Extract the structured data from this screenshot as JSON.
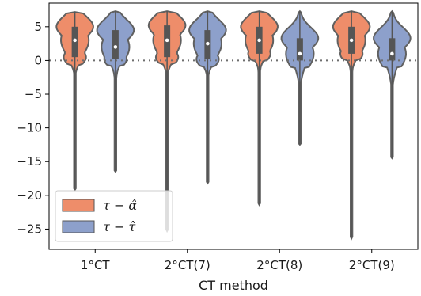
{
  "chart_data": {
    "type": "violin",
    "xlabel": "CT method",
    "ylabel": "",
    "ylim": [
      -28,
      8.5
    ],
    "yticks": [
      5,
      0,
      -5,
      -10,
      -15,
      -20,
      -25
    ],
    "ytick_labels": [
      "5",
      "0",
      "−5",
      "−10",
      "−15",
      "−20",
      "−25"
    ],
    "categories": [
      "1°CT",
      "2°CT(7)",
      "2°CT(8)",
      "2°CT(9)"
    ],
    "reference_line": 0,
    "legend_position": "lower-left",
    "series": [
      {
        "name": "τ − α̂",
        "color": "#ee8d6a",
        "stats": [
          {
            "min": -19.2,
            "q1": 0.5,
            "median": 3.0,
            "q3": 5.0,
            "max": 7.2
          },
          {
            "min": -25.3,
            "q1": 0.5,
            "median": 3.0,
            "q3": 5.2,
            "max": 7.3
          },
          {
            "min": -21.4,
            "q1": 1.0,
            "median": 3.0,
            "q3": 5.0,
            "max": 7.3
          },
          {
            "min": -26.4,
            "q1": 1.0,
            "median": 3.0,
            "q3": 5.0,
            "max": 7.3
          }
        ]
      },
      {
        "name": "τ − τ̂",
        "color": "#8da0cb",
        "stats": [
          {
            "min": -16.5,
            "q1": 0.2,
            "median": 2.0,
            "q3": 4.5,
            "max": 7.3
          },
          {
            "min": -18.2,
            "q1": 0.2,
            "median": 2.5,
            "q3": 4.5,
            "max": 7.3
          },
          {
            "min": -12.5,
            "q1": 0.0,
            "median": 1.0,
            "q3": 3.3,
            "max": 7.3
          },
          {
            "min": -14.5,
            "q1": 0.0,
            "median": 1.0,
            "q3": 3.3,
            "max": 7.3
          }
        ]
      }
    ]
  }
}
